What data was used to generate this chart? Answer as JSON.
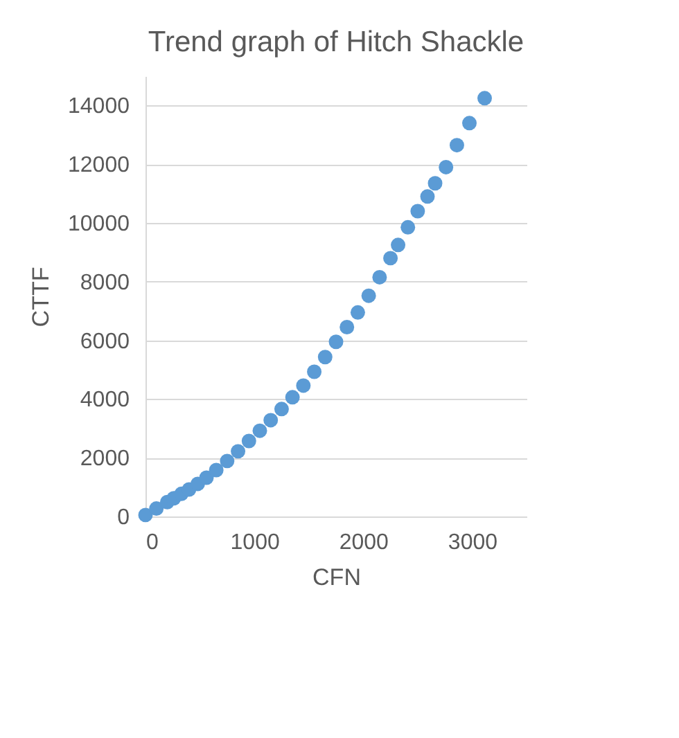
{
  "chart_data": {
    "type": "scatter",
    "title": "Trend graph of Hitch Shackle",
    "xlabel": "CFN",
    "ylabel": "CTTF",
    "x": [
      0,
      100,
      200,
      260,
      330,
      400,
      480,
      560,
      650,
      750,
      850,
      950,
      1050,
      1150,
      1250,
      1350,
      1450,
      1550,
      1650,
      1750,
      1850,
      1950,
      2050,
      2150,
      2250,
      2320,
      2410,
      2500,
      2590,
      2660,
      2760,
      2860,
      2975,
      3115
    ],
    "series": [
      {
        "color": "#5b9bd5",
        "values": [
          50,
          270,
          490,
          620,
          770,
          920,
          1110,
          1320,
          1580,
          1890,
          2220,
          2570,
          2920,
          3280,
          3660,
          4060,
          4460,
          4930,
          5430,
          5950,
          6450,
          6950,
          7520,
          8150,
          8800,
          9250,
          9850,
          10400,
          10900,
          11350,
          11900,
          12650,
          13400,
          14250
        ]
      }
    ],
    "xlim": [
      0,
      3500
    ],
    "xticks": [
      0,
      1000,
      2000,
      3000
    ],
    "ylim": [
      0,
      15000
    ],
    "yticks": [
      0,
      2000,
      4000,
      6000,
      8000,
      10000,
      12000,
      14000
    ],
    "grid": "y",
    "marker": "circle"
  }
}
